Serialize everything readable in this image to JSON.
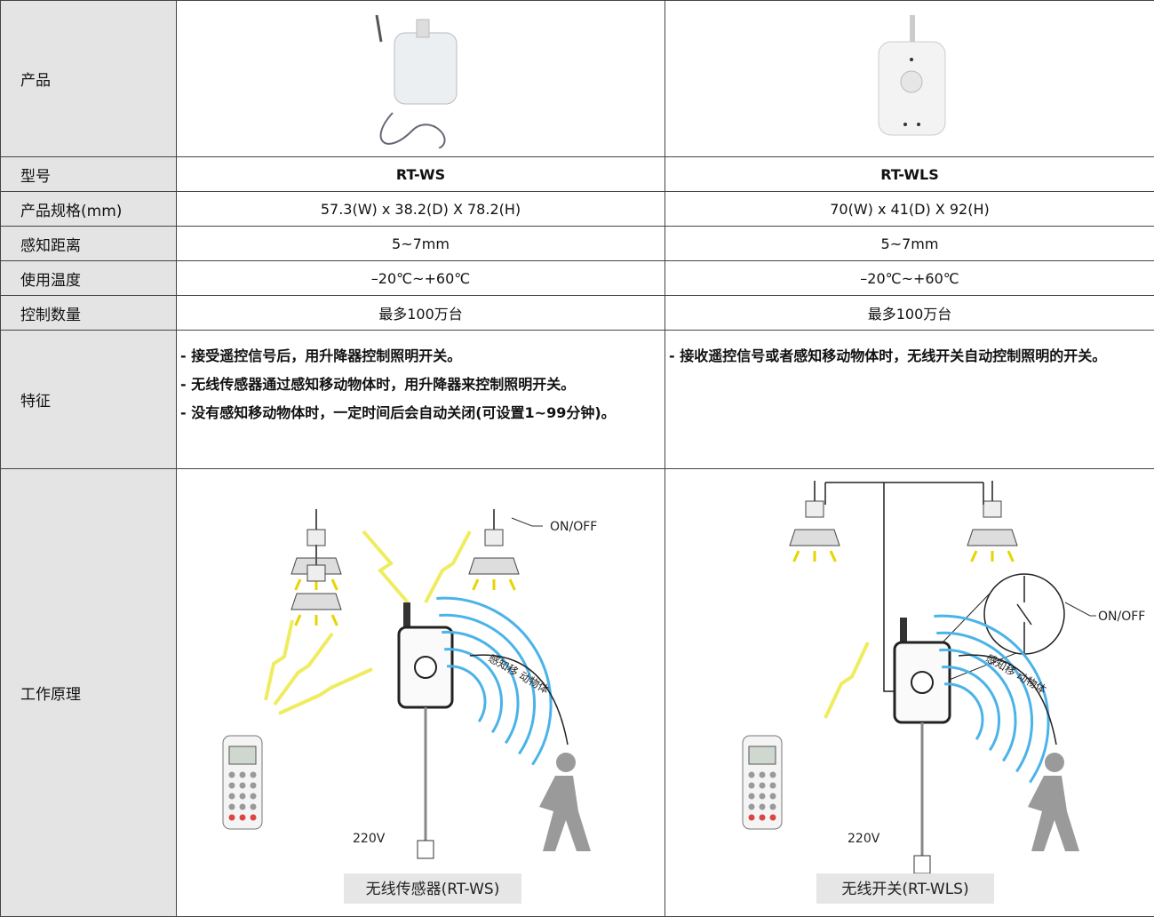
{
  "product_label": "产品",
  "rows": [
    [
      "型号",
      "RT-WS",
      "RT-WLS"
    ],
    [
      "产品规格(mm)",
      "57.3(W) x 38.2(D) X 78.2(H)",
      "70(W) x 41(D) X 92(H)"
    ],
    [
      "感知距离",
      "5~7mm",
      "5~7mm"
    ],
    [
      "使用温度",
      "–20℃~+60℃",
      "–20℃~+60℃"
    ],
    [
      "控制数量",
      "最多100万台",
      "最多100万台"
    ]
  ],
  "features": {
    "label": "特征",
    "col1": [
      "- 接受遥控信号后，用升降器控制照明开关。",
      "- 无线传感器通过感知移动物体时，用升降器来控制照明开关。",
      "- 没有感知移动物体时，一定时间后会自动关闭(可设置1~99分钟)。"
    ],
    "col2": [
      "- 接收遥控信号或者感知移动物体时，无线开关自动控制照明的开关。"
    ]
  },
  "principle": {
    "label": "工作原理",
    "diagrams": [
      {
        "on_off": "ON/OFF",
        "voltage": "220V",
        "motion_label": "感知移 动物体",
        "caption": "无线传感器(RT-WS)"
      },
      {
        "on_off": "ON/OFF",
        "voltage": "220V",
        "motion_label": "感知移 动物体",
        "caption": "无线开关(RT-WLS)"
      }
    ]
  }
}
